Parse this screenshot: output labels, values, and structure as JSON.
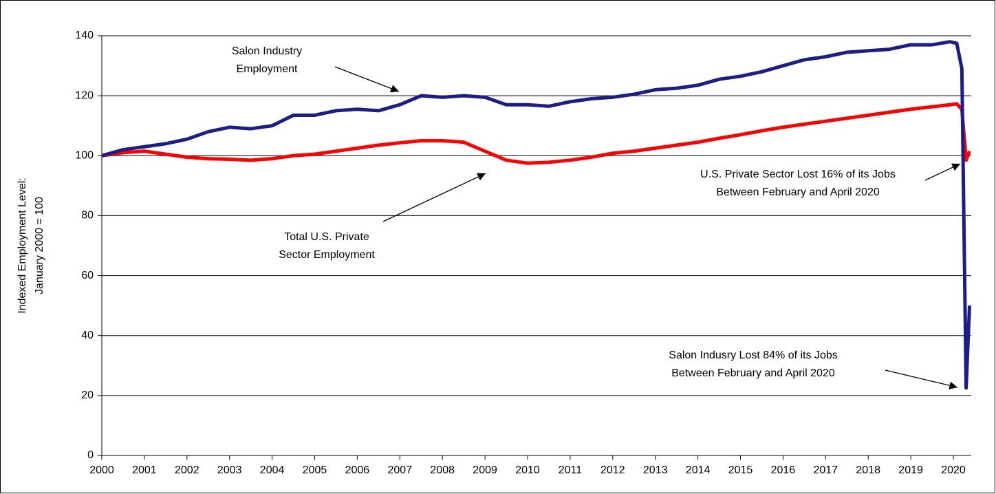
{
  "chart_data": {
    "type": "line",
    "y_label": [
      "Indexed Employment Level:",
      "January 2000 = 100"
    ],
    "x": [
      2000,
      2000.5,
      2001,
      2001.5,
      2002,
      2002.5,
      2003,
      2003.5,
      2004,
      2004.5,
      2005,
      2005.5,
      2006,
      2006.5,
      2007,
      2007.5,
      2008,
      2008.5,
      2009,
      2009.5,
      2010,
      2010.5,
      2011,
      2011.5,
      2012,
      2012.5,
      2013,
      2013.5,
      2014,
      2014.5,
      2015,
      2015.5,
      2016,
      2016.5,
      2017,
      2017.5,
      2018,
      2018.5,
      2019,
      2019.5,
      2019.92,
      2020.08,
      2020.2,
      2020.3,
      2020.38
    ],
    "series": [
      {
        "name": "Salon Industry Employment",
        "color": "#1c1c8a",
        "values": [
          100,
          102,
          103,
          104,
          105.5,
          108,
          109.5,
          109,
          110,
          113.5,
          113.5,
          115,
          115.5,
          115,
          117,
          120,
          119.5,
          120,
          119.5,
          117,
          117,
          116.5,
          118,
          119,
          119.5,
          120.5,
          122,
          122.5,
          123.5,
          125.5,
          126.5,
          128,
          130,
          132,
          133,
          134.5,
          135,
          135.5,
          137,
          137,
          138,
          137.5,
          129,
          22.5,
          50
        ]
      },
      {
        "name": "Total U.S. Private Sector Employment",
        "color": "#ff0000",
        "values": [
          100,
          101,
          101.5,
          100.5,
          99.5,
          99,
          98.8,
          98.5,
          99,
          100,
          100.5,
          101.5,
          102.5,
          103.5,
          104.3,
          105,
          105,
          104.5,
          101.5,
          98.5,
          97.5,
          97.8,
          98.5,
          99.5,
          100.8,
          101.5,
          102.5,
          103.5,
          104.5,
          105.8,
          107,
          108.3,
          109.5,
          110.5,
          111.5,
          112.5,
          113.5,
          114.5,
          115.5,
          116.3,
          117,
          117.3,
          115.5,
          98.5,
          101.5
        ]
      }
    ],
    "annotations": [
      {
        "lines": [
          "Salon Industry",
          "Employment"
        ]
      },
      {
        "lines": [
          "Total U.S. Private",
          "Sector Employment"
        ]
      },
      {
        "lines": [
          "U.S. Private Sector Lost 16% of its Jobs",
          "Between February and April 2020"
        ]
      },
      {
        "lines": [
          "Salon Indusry Lost 84% of its Jobs",
          "Between February and April 2020"
        ]
      }
    ],
    "xlim": [
      2000,
      2020.42
    ],
    "xticks": [
      2000,
      2001,
      2002,
      2003,
      2004,
      2005,
      2006,
      2007,
      2008,
      2009,
      2010,
      2011,
      2012,
      2013,
      2014,
      2015,
      2016,
      2017,
      2018,
      2019,
      2020
    ],
    "ylim": [
      0,
      140
    ],
    "yticks": [
      0,
      20,
      40,
      60,
      80,
      100,
      120,
      140
    ],
    "grid": true
  }
}
